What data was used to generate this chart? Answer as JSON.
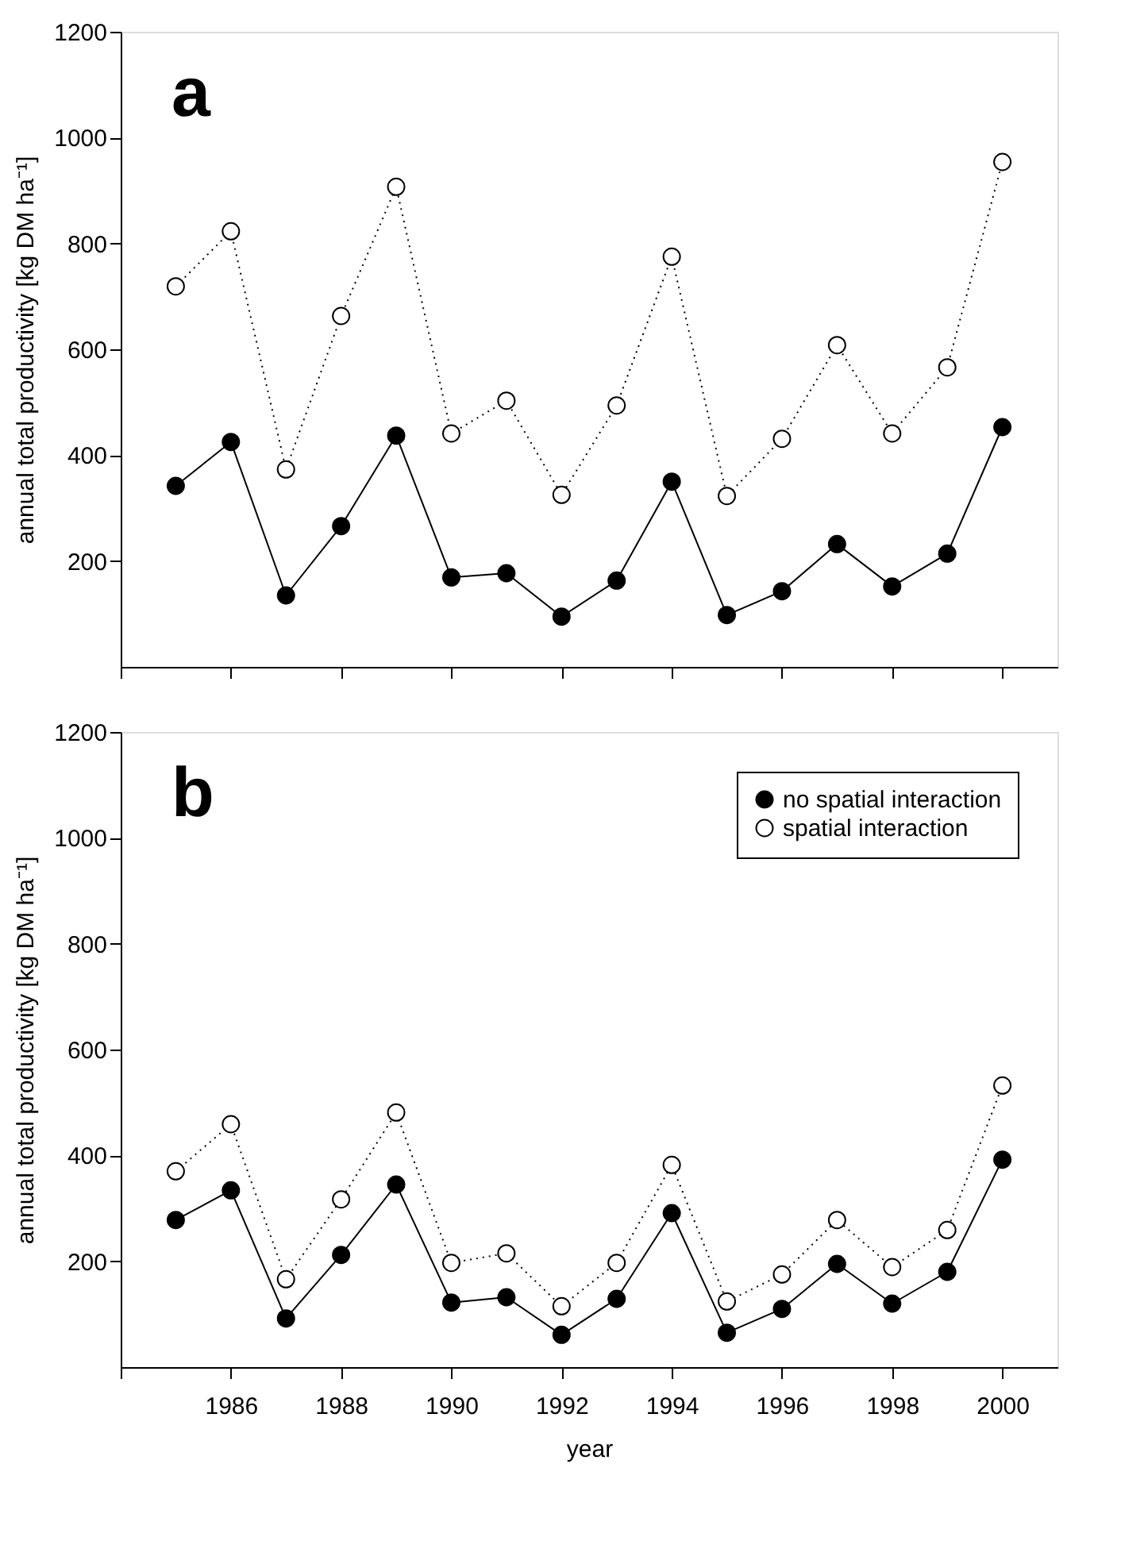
{
  "chart_data": [
    {
      "type": "line",
      "ylabel": "annual total productivity [kg DM ha⁻¹]",
      "annotations": [
        "a"
      ],
      "xlim": [
        1984,
        2001
      ],
      "xticks": [
        1984,
        1986,
        1988,
        1990,
        1992,
        1994,
        1996,
        1998,
        2000
      ],
      "ylim": [
        0,
        1200
      ],
      "yticks": [
        200,
        400,
        600,
        800,
        1000,
        1200
      ],
      "tick_labels": "y",
      "grid": false,
      "legend": false,
      "marker": "circle",
      "x": [
        1985,
        1986,
        1987,
        1988,
        1989,
        1990,
        1991,
        1992,
        1993,
        1994,
        1995,
        1996,
        1997,
        1998,
        1999,
        2000
      ],
      "series": [
        {
          "color": "#000000",
          "line_style": "solid",
          "values": [
            342,
            425,
            135,
            266,
            437,
            169,
            177,
            95,
            163,
            350,
            98,
            143,
            232,
            152,
            214,
            453
          ]
        },
        {
          "color": "#000000",
          "line_style": "dotted",
          "values": [
            719,
            823,
            373,
            663,
            907,
            441,
            503,
            325,
            494,
            775,
            323,
            431,
            608,
            441,
            566,
            954
          ]
        }
      ]
    },
    {
      "type": "line",
      "xlabel": "year",
      "ylabel": "annual total productivity [kg DM ha⁻¹]",
      "annotations": [
        "b"
      ],
      "xlim": [
        1984,
        2001
      ],
      "xticks": [
        {
          "value": 1984,
          "label": null
        },
        1986,
        1988,
        1990,
        1992,
        1994,
        1996,
        1998,
        2000
      ],
      "ylim": [
        0,
        1200
      ],
      "yticks": [
        200,
        400,
        600,
        800,
        1000,
        1200
      ],
      "grid": false,
      "legend": "top right",
      "marker": "circle",
      "x": [
        1985,
        1986,
        1987,
        1988,
        1989,
        1990,
        1991,
        1992,
        1993,
        1994,
        1995,
        1996,
        1997,
        1998,
        1999,
        2000
      ],
      "series": [
        {
          "name": "no spatial interaction",
          "color": "#000000",
          "line_style": "solid",
          "values": [
            278,
            334,
            92,
            212,
            345,
            122,
            132,
            61,
            129,
            291,
            65,
            110,
            195,
            120,
            180,
            392
          ]
        },
        {
          "name": "spatial interaction",
          "color": "#000000",
          "line_style": "dotted",
          "values": [
            370,
            459,
            166,
            317,
            481,
            197,
            215,
            115,
            197,
            382,
            124,
            175,
            278,
            189,
            259,
            532
          ]
        }
      ]
    }
  ]
}
